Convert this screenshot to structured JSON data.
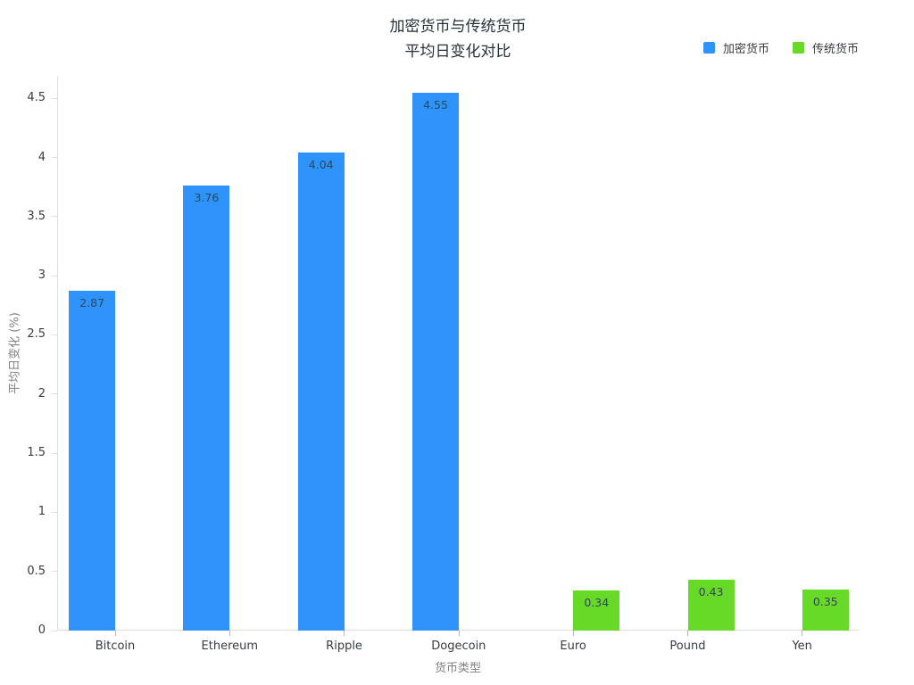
{
  "title": {
    "line1": "加密货币与传统货币",
    "line2": "平均日变化对比"
  },
  "axes": {
    "x_title": "货币类型",
    "y_title": "平均日变化 (%)"
  },
  "colors": {
    "crypto_bar": "#2E93FA",
    "traditional_bar": "#66DA26",
    "axis_line": "#e0e0e0",
    "tick_text": "#373d3f",
    "axis_title_text": "#818181",
    "value_label_text": "#304758",
    "title_text": "#263238",
    "background": "#ffffff"
  },
  "chart_data": {
    "type": "bar",
    "title": "加密货币与传统货币 平均日变化对比",
    "title_lines": [
      "加密货币与传统货币",
      "平均日变化对比"
    ],
    "xlabel": "货币类型",
    "ylabel": "平均日变化 (%)",
    "categories": [
      "Bitcoin",
      "Ethereum",
      "Ripple",
      "Dogecoin",
      "Euro",
      "Pound",
      "Yen"
    ],
    "series": [
      {
        "name": "加密货币",
        "color": "#2E93FA",
        "values": [
          2.87,
          3.76,
          4.04,
          4.55,
          null,
          null,
          null
        ]
      },
      {
        "name": "传统货币",
        "color": "#66DA26",
        "values": [
          null,
          null,
          null,
          null,
          0.34,
          0.43,
          0.35
        ]
      }
    ],
    "value_label_format": "2dp",
    "value_label_position": "inside-top",
    "ylim": [
      0,
      4.69
    ],
    "yticks": [
      0,
      0.5,
      1,
      1.5,
      2,
      2.5,
      3,
      3.5,
      4,
      4.5
    ],
    "grid": false,
    "legend_position": "top-right",
    "bar_mode": "grouped"
  }
}
